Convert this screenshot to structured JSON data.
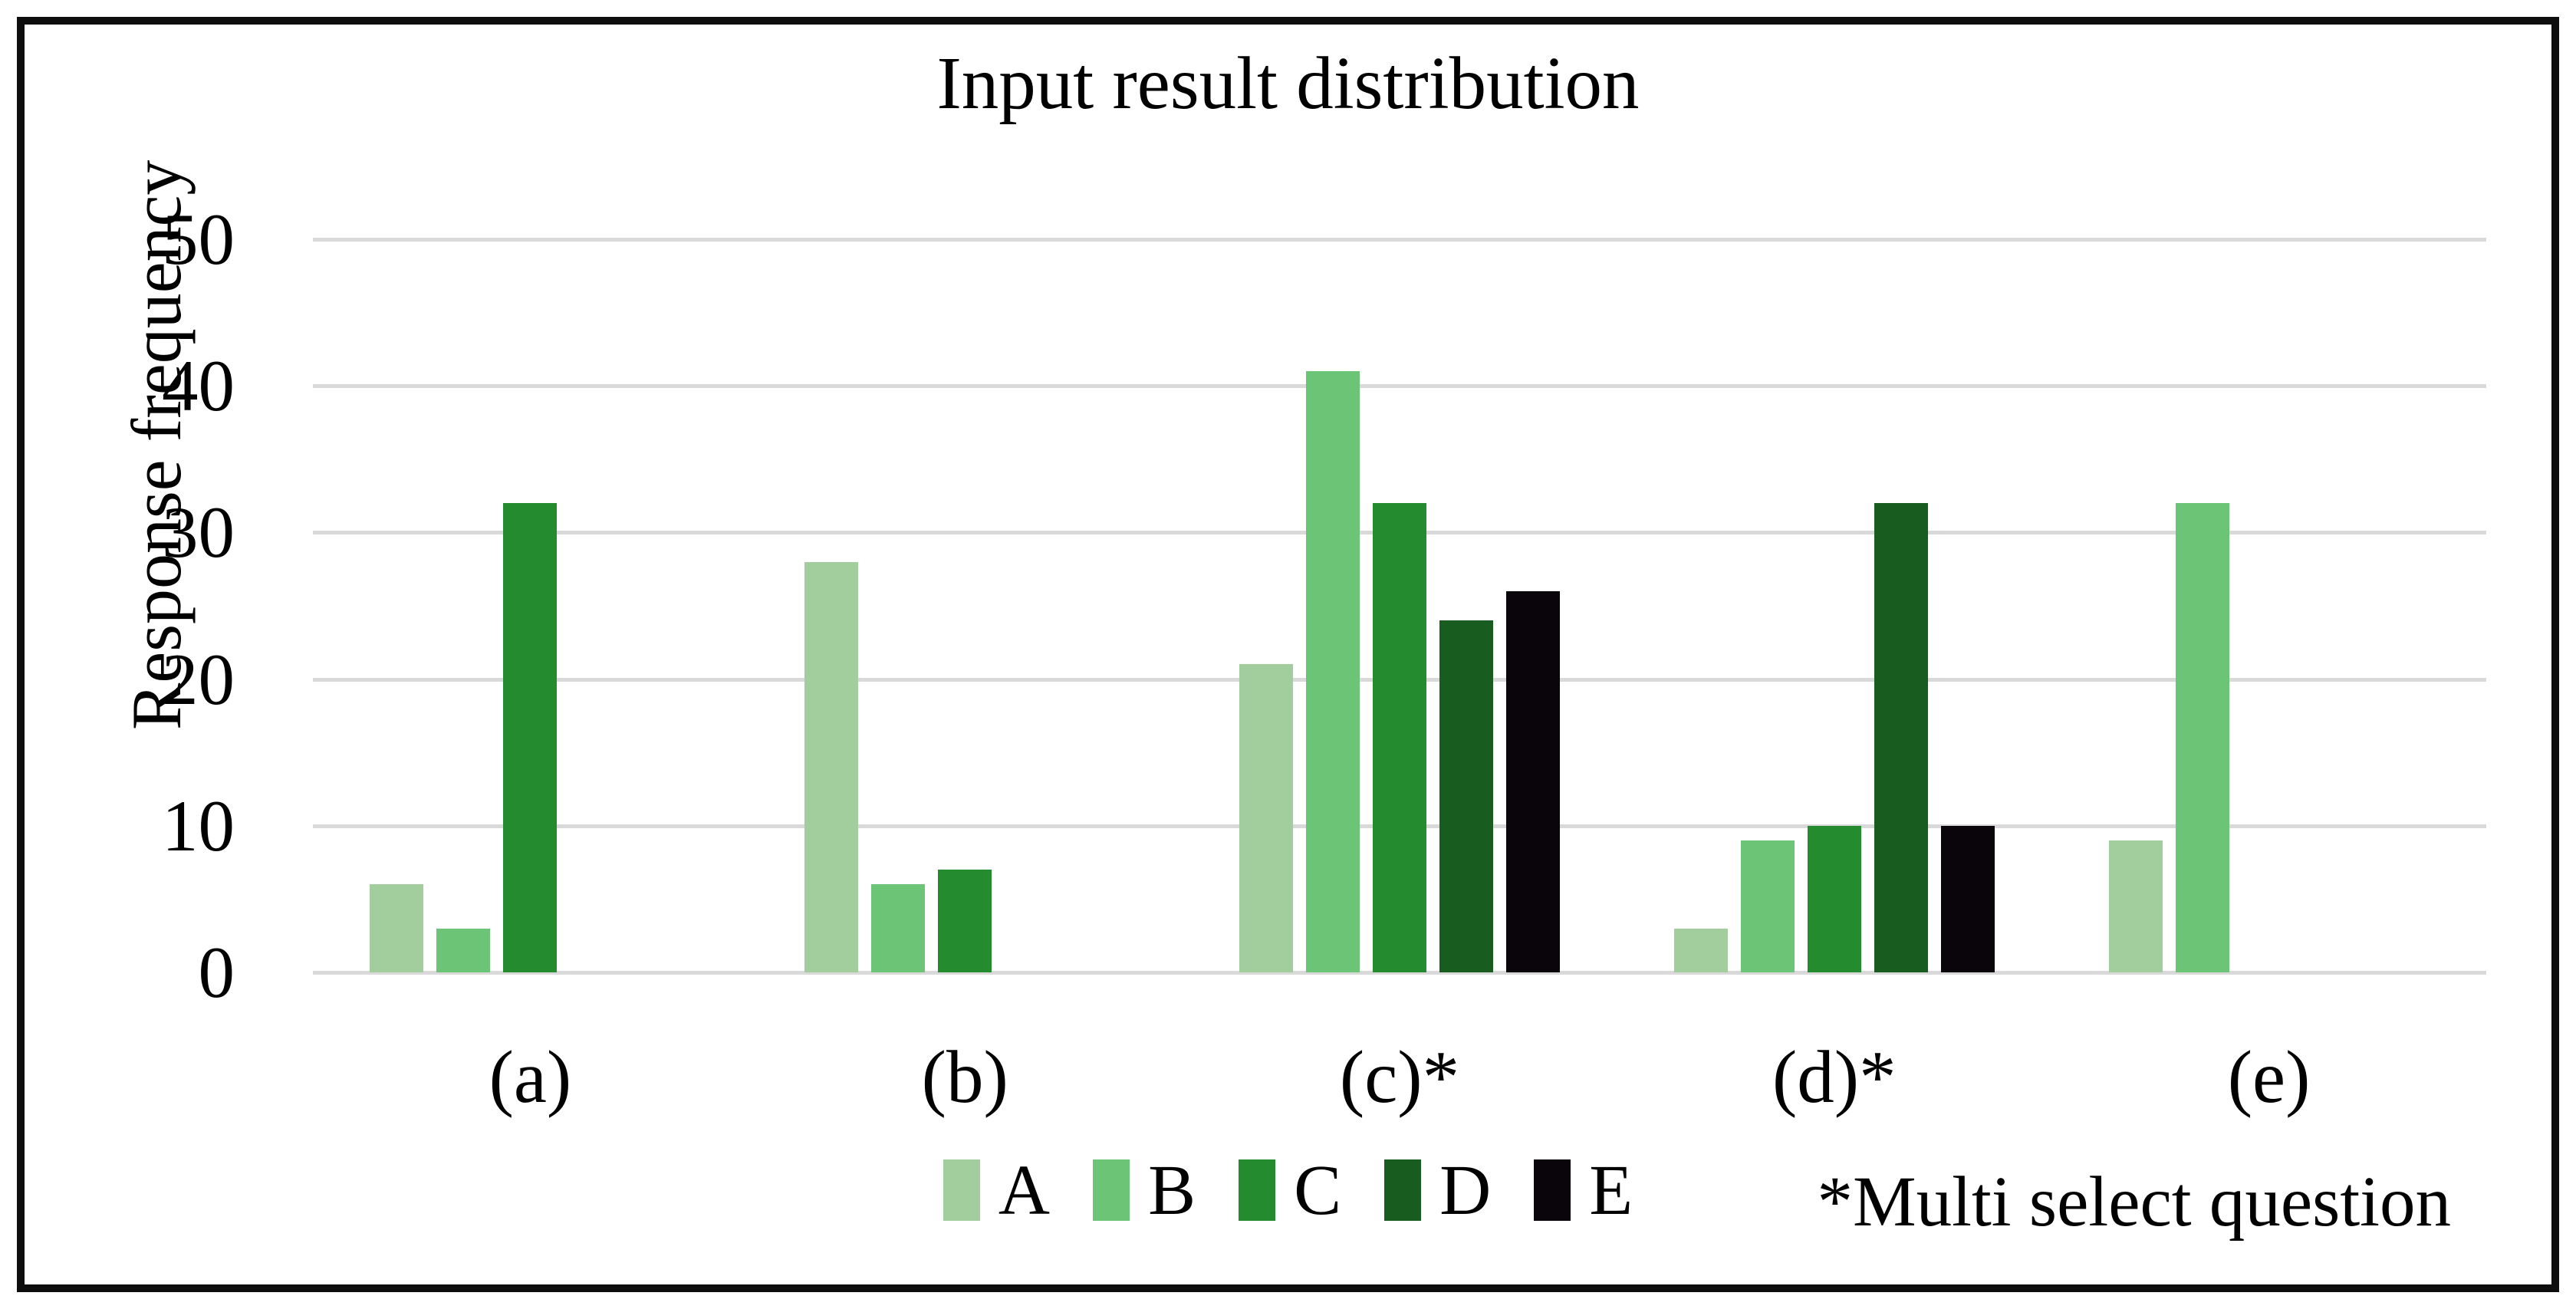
{
  "chart_data": {
    "type": "bar",
    "title": "Input result distribution",
    "xlabel": "",
    "ylabel": "Response frequency",
    "categories": [
      "(a)",
      "(b)",
      "(c)*",
      "(d)*",
      "(e)"
    ],
    "series": [
      {
        "name": "A",
        "color": "#a2ce9d",
        "values": [
          6,
          28,
          21,
          3,
          9
        ]
      },
      {
        "name": "B",
        "color": "#6cc476",
        "values": [
          3,
          6,
          41,
          9,
          32
        ]
      },
      {
        "name": "C",
        "color": "#248c2f",
        "values": [
          32,
          7,
          32,
          10,
          0
        ]
      },
      {
        "name": "D",
        "color": "#185c20",
        "values": [
          0,
          0,
          24,
          32,
          0
        ]
      },
      {
        "name": "E",
        "color": "#0a050a",
        "values": [
          0,
          0,
          26,
          10,
          0
        ]
      }
    ],
    "ylim": [
      0,
      50
    ],
    "yticks": [
      0,
      10,
      20,
      30,
      40,
      50
    ],
    "grid": true,
    "legend_position": "bottom",
    "note": "*Multi select question"
  },
  "style": {
    "background": "#ffffff",
    "border_color": "#0e0e0e",
    "gridline_color": "#d9d9d9",
    "text_color": "#000000"
  }
}
